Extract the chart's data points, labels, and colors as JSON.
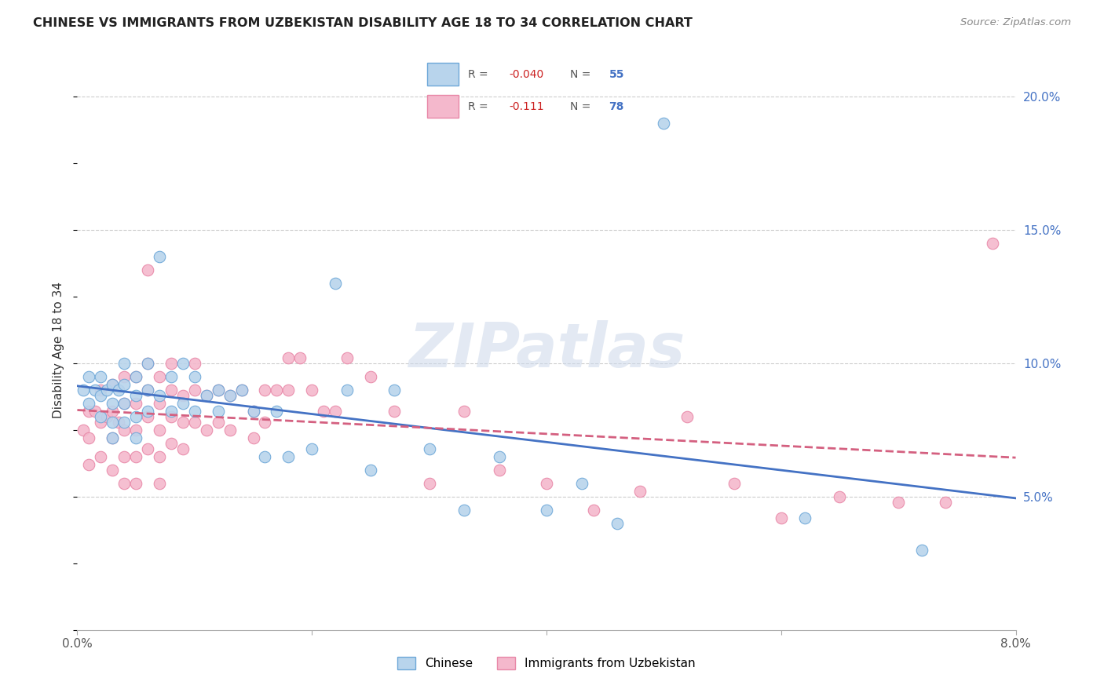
{
  "title": "CHINESE VS IMMIGRANTS FROM UZBEKISTAN DISABILITY AGE 18 TO 34 CORRELATION CHART",
  "source": "Source: ZipAtlas.com",
  "ylabel": "Disability Age 18 to 34",
  "x_min": 0.0,
  "x_max": 0.08,
  "y_min": 0.0,
  "y_max": 0.21,
  "y_ticks_right": [
    0.05,
    0.1,
    0.15,
    0.2
  ],
  "y_tick_labels_right": [
    "5.0%",
    "10.0%",
    "15.0%",
    "20.0%"
  ],
  "color_chinese": "#b8d4ec",
  "color_uzbekistan": "#f4b8cc",
  "color_edge_chinese": "#6ea8d8",
  "color_edge_uzbekistan": "#e888a8",
  "color_line_chinese": "#4472c4",
  "color_line_uzbekistan": "#d46080",
  "watermark": "ZIPatlas",
  "chinese_x": [
    0.0005,
    0.001,
    0.001,
    0.0015,
    0.002,
    0.002,
    0.002,
    0.0025,
    0.003,
    0.003,
    0.003,
    0.003,
    0.0035,
    0.004,
    0.004,
    0.004,
    0.004,
    0.005,
    0.005,
    0.005,
    0.005,
    0.006,
    0.006,
    0.006,
    0.007,
    0.007,
    0.008,
    0.008,
    0.009,
    0.009,
    0.01,
    0.01,
    0.011,
    0.012,
    0.012,
    0.013,
    0.014,
    0.015,
    0.016,
    0.017,
    0.018,
    0.02,
    0.022,
    0.023,
    0.025,
    0.027,
    0.03,
    0.033,
    0.036,
    0.04,
    0.043,
    0.046,
    0.05,
    0.062,
    0.072
  ],
  "chinese_y": [
    0.09,
    0.095,
    0.085,
    0.09,
    0.095,
    0.088,
    0.08,
    0.09,
    0.092,
    0.085,
    0.078,
    0.072,
    0.09,
    0.1,
    0.092,
    0.085,
    0.078,
    0.095,
    0.088,
    0.08,
    0.072,
    0.1,
    0.09,
    0.082,
    0.14,
    0.088,
    0.095,
    0.082,
    0.1,
    0.085,
    0.095,
    0.082,
    0.088,
    0.09,
    0.082,
    0.088,
    0.09,
    0.082,
    0.065,
    0.082,
    0.065,
    0.068,
    0.13,
    0.09,
    0.06,
    0.09,
    0.068,
    0.045,
    0.065,
    0.045,
    0.055,
    0.04,
    0.19,
    0.042,
    0.03
  ],
  "uzbekistan_x": [
    0.0005,
    0.001,
    0.001,
    0.001,
    0.0015,
    0.002,
    0.002,
    0.002,
    0.0025,
    0.003,
    0.003,
    0.003,
    0.003,
    0.0035,
    0.004,
    0.004,
    0.004,
    0.004,
    0.004,
    0.005,
    0.005,
    0.005,
    0.005,
    0.005,
    0.006,
    0.006,
    0.006,
    0.006,
    0.006,
    0.007,
    0.007,
    0.007,
    0.007,
    0.007,
    0.008,
    0.008,
    0.008,
    0.008,
    0.009,
    0.009,
    0.009,
    0.01,
    0.01,
    0.01,
    0.011,
    0.011,
    0.012,
    0.012,
    0.013,
    0.013,
    0.014,
    0.015,
    0.015,
    0.016,
    0.016,
    0.017,
    0.018,
    0.018,
    0.019,
    0.02,
    0.021,
    0.022,
    0.023,
    0.025,
    0.027,
    0.03,
    0.033,
    0.036,
    0.04,
    0.044,
    0.048,
    0.052,
    0.056,
    0.06,
    0.065,
    0.07,
    0.074,
    0.078
  ],
  "uzbekistan_y": [
    0.075,
    0.082,
    0.072,
    0.062,
    0.082,
    0.09,
    0.078,
    0.065,
    0.08,
    0.092,
    0.082,
    0.072,
    0.06,
    0.078,
    0.095,
    0.085,
    0.075,
    0.065,
    0.055,
    0.095,
    0.085,
    0.075,
    0.065,
    0.055,
    0.135,
    0.1,
    0.09,
    0.08,
    0.068,
    0.095,
    0.085,
    0.075,
    0.065,
    0.055,
    0.1,
    0.09,
    0.08,
    0.07,
    0.088,
    0.078,
    0.068,
    0.1,
    0.09,
    0.078,
    0.088,
    0.075,
    0.09,
    0.078,
    0.088,
    0.075,
    0.09,
    0.082,
    0.072,
    0.09,
    0.078,
    0.09,
    0.102,
    0.09,
    0.102,
    0.09,
    0.082,
    0.082,
    0.102,
    0.095,
    0.082,
    0.055,
    0.082,
    0.06,
    0.055,
    0.045,
    0.052,
    0.08,
    0.055,
    0.042,
    0.05,
    0.048,
    0.048,
    0.145
  ]
}
